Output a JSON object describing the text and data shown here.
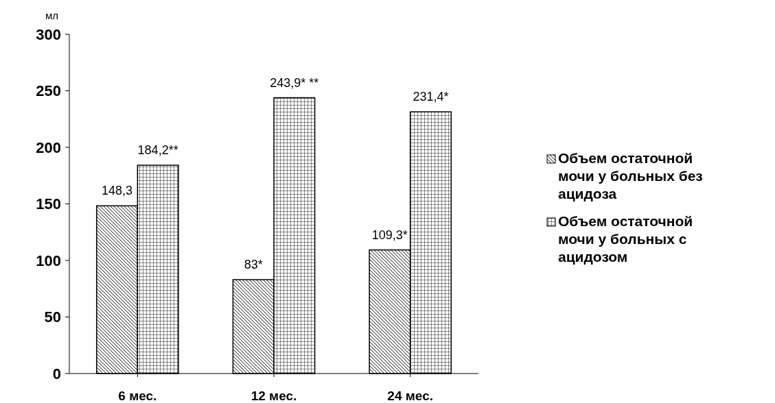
{
  "chart_data": {
    "type": "bar",
    "ylabel": "мл",
    "categories": [
      "6 мес.",
      "12 мес.",
      "24 мес."
    ],
    "series": [
      {
        "name": "Объем остаточной мочи у больных без ацидоза",
        "color": "#000000",
        "values": [
          148.3,
          83,
          109.3
        ],
        "value_labels": [
          "148,3",
          "83*",
          "109,3*"
        ]
      },
      {
        "name": "Объем остаточной мочи у больных с ацидозом",
        "color": "#000000",
        "values": [
          184.2,
          243.9,
          231.4
        ],
        "value_labels": [
          "184,2**",
          "243,9* **",
          "231,4*"
        ]
      }
    ],
    "ylim": [
      0,
      300
    ],
    "yticks": [
      0,
      50,
      100,
      150,
      200,
      250,
      300
    ],
    "grid": false,
    "legend": "right"
  }
}
